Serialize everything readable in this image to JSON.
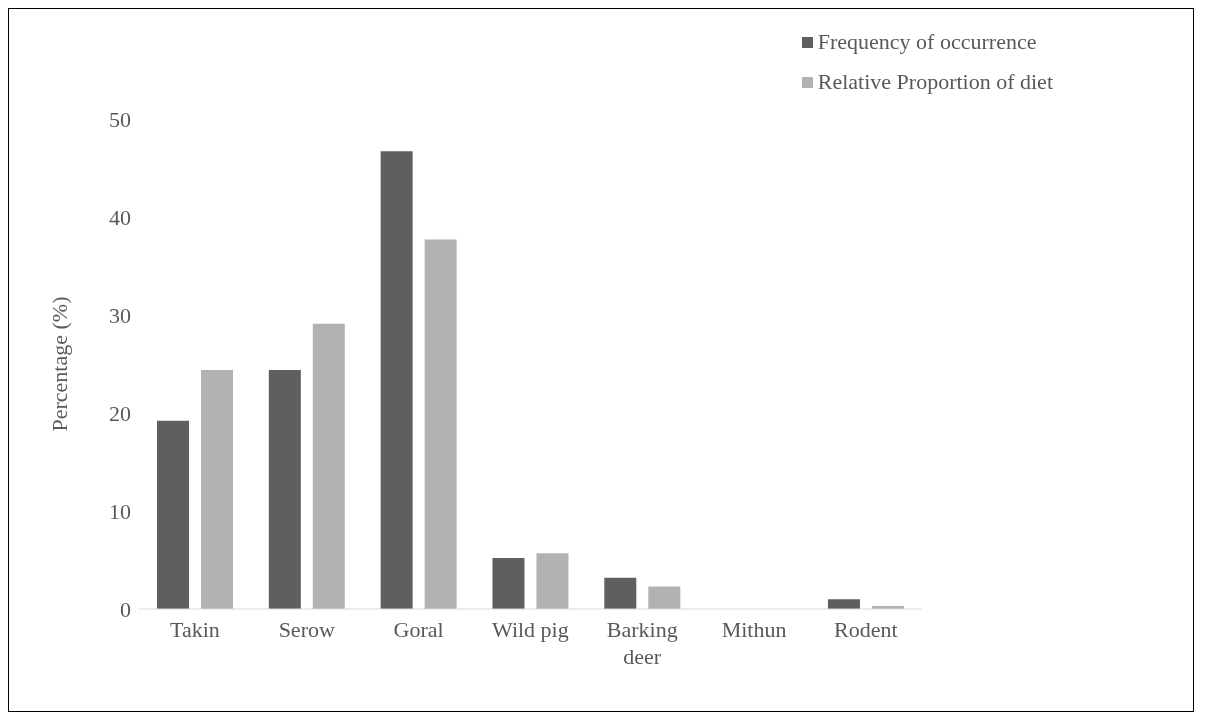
{
  "chart_data": {
    "type": "bar",
    "ylabel": "Percentage (%)",
    "categories": [
      "Takin",
      "Serow",
      "Goral",
      "Wild pig",
      "Barking deer",
      "Mithun",
      "Rodent"
    ],
    "series": [
      {
        "name": "Frequency of occurrence",
        "color": "#5f5f5f",
        "values": [
          19.2,
          24.4,
          46.7,
          5.2,
          3.2,
          0,
          1.0
        ]
      },
      {
        "name": "Relative Proportion of diet",
        "color": "#b2b2b2",
        "values": [
          24.4,
          29.1,
          37.7,
          5.7,
          2.3,
          0,
          0.3
        ]
      }
    ],
    "ylim": [
      0,
      50
    ],
    "yticks": [
      0,
      10,
      20,
      30,
      40,
      50
    ],
    "grid": false,
    "legend": "top right"
  }
}
